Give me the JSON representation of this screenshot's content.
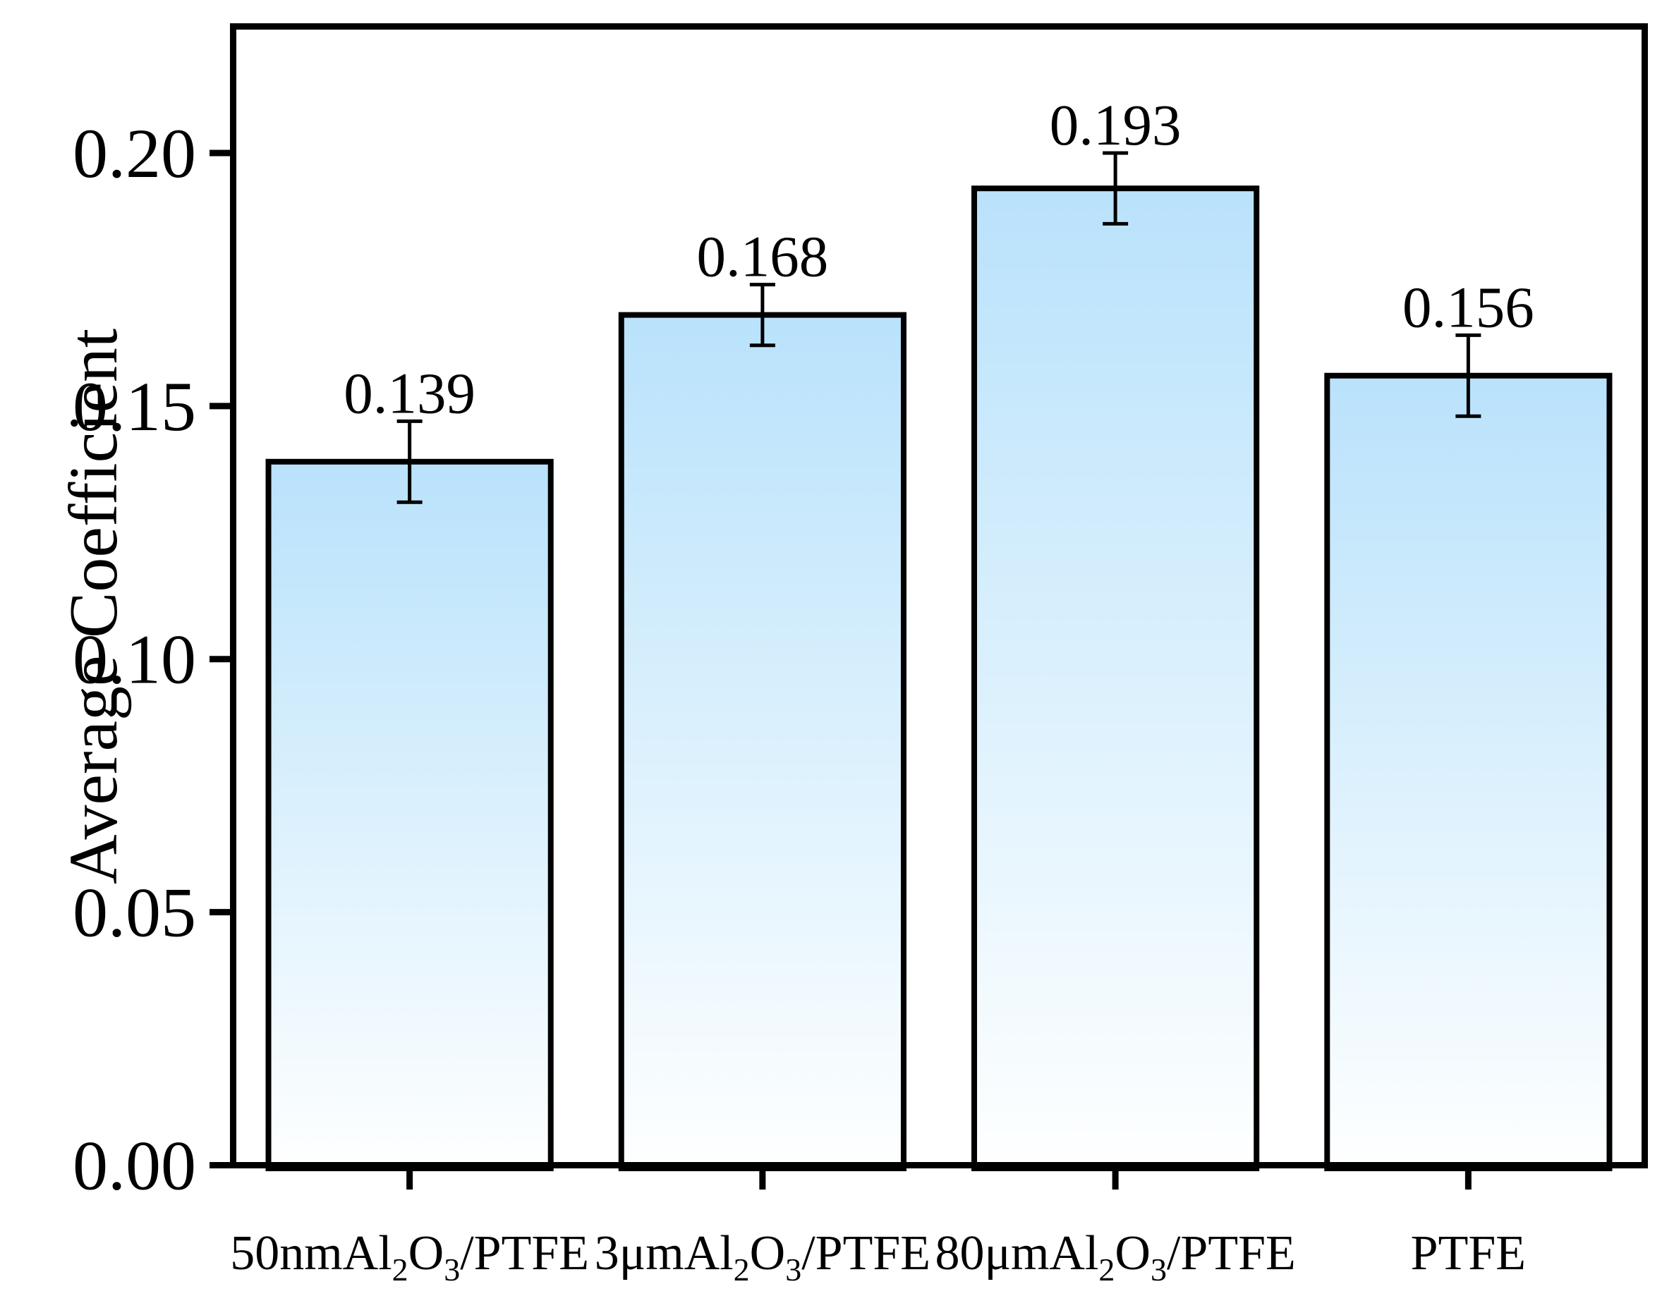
{
  "chart_data": {
    "type": "bar",
    "title": "",
    "xlabel": "",
    "ylabel": "Average Coefficient",
    "ylim": [
      0,
      0.225
    ],
    "grid": false,
    "legend": "none",
    "yticks": {
      "values": [
        0.0,
        0.05,
        0.1,
        0.15,
        0.2
      ],
      "labels": [
        "0.00",
        "0.05",
        "0.10",
        "0.15",
        "0.20"
      ]
    },
    "categories": [
      {
        "label": "50nmAl₂O₃/PTFE",
        "parts": [
          {
            "t": "50nmAl"
          },
          {
            "t": "2",
            "sub": true
          },
          {
            "t": "O"
          },
          {
            "t": "3",
            "sub": true
          },
          {
            "t": "/PTFE"
          }
        ]
      },
      {
        "label": "3μmAl₂O₃/PTFE",
        "parts": [
          {
            "t": "3μmAl"
          },
          {
            "t": "2",
            "sub": true
          },
          {
            "t": "O"
          },
          {
            "t": "3",
            "sub": true
          },
          {
            "t": "/PTFE"
          }
        ]
      },
      {
        "label": "80μmAl₂O₃/PTFE",
        "parts": [
          {
            "t": "80μmAl"
          },
          {
            "t": "2",
            "sub": true
          },
          {
            "t": "O"
          },
          {
            "t": "3",
            "sub": true
          },
          {
            "t": "/PTFE"
          }
        ]
      },
      {
        "label": "PTFE",
        "parts": [
          {
            "t": "PTFE"
          }
        ]
      }
    ],
    "series": [
      {
        "name": "Average Coefficient",
        "values": [
          0.139,
          0.168,
          0.193,
          0.156
        ],
        "errors": [
          0.008,
          0.006,
          0.007,
          0.008
        ],
        "data_labels": [
          "0.139",
          "0.168",
          "0.193",
          "0.156"
        ]
      }
    ],
    "colors": {
      "bar_fill_top": "#b9e2fb",
      "bar_fill_bottom": "#feffff",
      "bar_outline": "#000000",
      "axis": "#000000",
      "text": "#000000",
      "background": "#ffffff"
    }
  }
}
